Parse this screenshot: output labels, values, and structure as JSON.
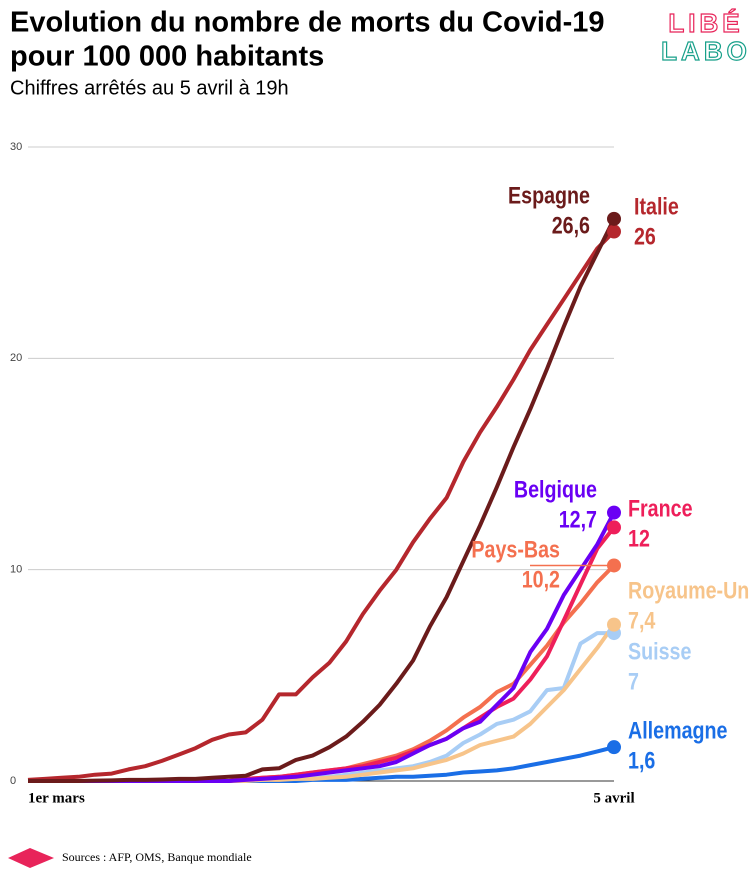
{
  "chart_data": {
    "type": "line",
    "title": [
      "Evolution du nombre de morts du Covid-19",
      "pour 100 000 habitants"
    ],
    "subtitle": "Chiffres arrêtés au 5 avril à 19h",
    "logo": [
      "LIBÉ",
      "LABO"
    ],
    "source": "Sources : AFP, OMS, Banque mondiale",
    "categories": [
      "1er mars",
      null,
      null,
      null,
      null,
      null,
      null,
      null,
      null,
      null,
      null,
      null,
      null,
      null,
      null,
      null,
      null,
      null,
      null,
      null,
      null,
      null,
      null,
      null,
      null,
      null,
      null,
      null,
      null,
      null,
      null,
      null,
      null,
      null,
      null,
      "5 avril"
    ],
    "ylim": [
      0,
      30
    ],
    "yticks": [
      0,
      10,
      20,
      30
    ],
    "grid": true,
    "series": [
      {
        "name": "Allemagne",
        "color": "#1a6ee6",
        "values": [
          0,
          0,
          0,
          0,
          0,
          0,
          0,
          0,
          0,
          0,
          0,
          0,
          0,
          0,
          0,
          0,
          0,
          0.05,
          0.05,
          0.05,
          0.1,
          0.15,
          0.2,
          0.2,
          0.25,
          0.3,
          0.4,
          0.45,
          0.5,
          0.6,
          0.75,
          0.9,
          1.05,
          1.2,
          1.4,
          1.6
        ],
        "value_labels": [
          null,
          null,
          null,
          null,
          null,
          null,
          null,
          null,
          null,
          null,
          null,
          null,
          null,
          null,
          null,
          null,
          null,
          null,
          null,
          null,
          null,
          null,
          null,
          null,
          null,
          null,
          null,
          null,
          null,
          null,
          null,
          null,
          null,
          null,
          null,
          "1,6"
        ]
      },
      {
        "name": "Suisse",
        "color": "#a8cdf5",
        "values": [
          0,
          0,
          0,
          0,
          0,
          0,
          0,
          0,
          0,
          0,
          0,
          0,
          0,
          0.05,
          0.05,
          0.1,
          0.1,
          0.15,
          0.2,
          0.3,
          0.4,
          0.5,
          0.6,
          0.7,
          0.9,
          1.2,
          1.8,
          2.2,
          2.7,
          2.9,
          3.3,
          4.3,
          4.4,
          6.5,
          7.0,
          7.0
        ],
        "value_labels": [
          null,
          null,
          null,
          null,
          null,
          null,
          null,
          null,
          null,
          null,
          null,
          null,
          null,
          null,
          null,
          null,
          null,
          null,
          null,
          null,
          null,
          null,
          null,
          null,
          null,
          null,
          null,
          null,
          null,
          null,
          null,
          null,
          null,
          null,
          null,
          "7"
        ]
      },
      {
        "name": "Royaume-Uni",
        "color": "#f7c48a",
        "values": [
          0,
          0,
          0,
          0,
          0,
          0,
          0,
          0,
          0,
          0,
          0,
          0,
          0,
          0,
          0.05,
          0.05,
          0.1,
          0.1,
          0.15,
          0.2,
          0.3,
          0.4,
          0.5,
          0.6,
          0.8,
          1.0,
          1.3,
          1.7,
          1.9,
          2.1,
          2.7,
          3.5,
          4.3,
          5.3,
          6.3,
          7.4
        ],
        "value_labels": [
          null,
          null,
          null,
          null,
          null,
          null,
          null,
          null,
          null,
          null,
          null,
          null,
          null,
          null,
          null,
          null,
          null,
          null,
          null,
          null,
          null,
          null,
          null,
          null,
          null,
          null,
          null,
          null,
          null,
          null,
          null,
          null,
          null,
          null,
          null,
          "7,4"
        ]
      },
      {
        "name": "Pays-Bas",
        "color": "#f4704f",
        "values": [
          0,
          0,
          0,
          0,
          0,
          0,
          0,
          0,
          0,
          0,
          0,
          0,
          0,
          0.1,
          0.15,
          0.2,
          0.3,
          0.4,
          0.5,
          0.6,
          0.8,
          1.0,
          1.2,
          1.5,
          1.9,
          2.4,
          3.0,
          3.5,
          4.2,
          4.6,
          5.5,
          6.4,
          7.5,
          8.4,
          9.4,
          10.2
        ],
        "value_labels": [
          null,
          null,
          null,
          null,
          null,
          null,
          null,
          null,
          null,
          null,
          null,
          null,
          null,
          null,
          null,
          null,
          null,
          null,
          null,
          null,
          null,
          null,
          null,
          null,
          null,
          null,
          null,
          null,
          null,
          null,
          null,
          null,
          null,
          null,
          null,
          "10,2"
        ]
      },
      {
        "name": "France",
        "color": "#ee1f5a",
        "values": [
          0,
          0,
          0,
          0,
          0,
          0,
          0,
          0,
          0,
          0,
          0,
          0,
          0,
          0.1,
          0.15,
          0.2,
          0.3,
          0.4,
          0.5,
          0.6,
          0.7,
          0.9,
          1.1,
          1.4,
          1.7,
          2.0,
          2.5,
          3.0,
          3.5,
          3.9,
          4.8,
          5.9,
          7.6,
          9.3,
          11.0,
          12.0
        ],
        "value_labels": [
          null,
          null,
          null,
          null,
          null,
          null,
          null,
          null,
          null,
          null,
          null,
          null,
          null,
          null,
          null,
          null,
          null,
          null,
          null,
          null,
          null,
          null,
          null,
          null,
          null,
          null,
          null,
          null,
          null,
          null,
          null,
          null,
          null,
          null,
          null,
          "12"
        ]
      },
      {
        "name": "Belgique",
        "color": "#6a00f4",
        "values": [
          0,
          0,
          0,
          0,
          0,
          0,
          0,
          0,
          0,
          0,
          0,
          0,
          0,
          0.05,
          0.1,
          0.15,
          0.2,
          0.3,
          0.4,
          0.5,
          0.6,
          0.7,
          0.9,
          1.3,
          1.7,
          2.0,
          2.5,
          2.8,
          3.6,
          4.4,
          6.1,
          7.2,
          8.8,
          10.0,
          11.2,
          12.7
        ],
        "value_labels": [
          null,
          null,
          null,
          null,
          null,
          null,
          null,
          null,
          null,
          null,
          null,
          null,
          null,
          null,
          null,
          null,
          null,
          null,
          null,
          null,
          null,
          null,
          null,
          null,
          null,
          null,
          null,
          null,
          null,
          null,
          null,
          null,
          null,
          null,
          null,
          "12,7"
        ]
      },
      {
        "name": "Italie",
        "color": "#b5272d",
        "values": [
          0.05,
          0.1,
          0.15,
          0.2,
          0.3,
          0.35,
          0.55,
          0.7,
          0.95,
          1.25,
          1.55,
          1.95,
          2.2,
          2.3,
          2.9,
          4.1,
          4.1,
          4.9,
          5.6,
          6.6,
          7.9,
          9.0,
          10.0,
          11.3,
          12.4,
          13.4,
          15.1,
          16.5,
          17.7,
          19.0,
          20.4,
          21.6,
          22.8,
          24.0,
          25.2,
          26.0
        ],
        "value_labels": [
          null,
          null,
          null,
          null,
          null,
          null,
          null,
          null,
          null,
          null,
          null,
          null,
          null,
          null,
          null,
          null,
          null,
          null,
          null,
          null,
          null,
          null,
          null,
          null,
          null,
          null,
          null,
          null,
          null,
          null,
          null,
          null,
          null,
          null,
          null,
          "26"
        ]
      },
      {
        "name": "Espagne",
        "color": "#6b1b1b",
        "values": [
          0,
          0,
          0,
          0,
          0.02,
          0.03,
          0.05,
          0.05,
          0.07,
          0.1,
          0.1,
          0.15,
          0.2,
          0.25,
          0.55,
          0.6,
          1.0,
          1.2,
          1.6,
          2.1,
          2.8,
          3.6,
          4.6,
          5.7,
          7.3,
          8.7,
          10.4,
          12.1,
          13.9,
          15.8,
          17.6,
          19.5,
          21.5,
          23.4,
          25.0,
          26.6
        ],
        "value_labels": [
          null,
          null,
          null,
          null,
          null,
          null,
          null,
          null,
          null,
          null,
          null,
          null,
          null,
          null,
          null,
          null,
          null,
          null,
          null,
          null,
          null,
          null,
          null,
          null,
          null,
          null,
          null,
          null,
          null,
          null,
          null,
          null,
          null,
          null,
          null,
          "26,6"
        ]
      }
    ]
  }
}
